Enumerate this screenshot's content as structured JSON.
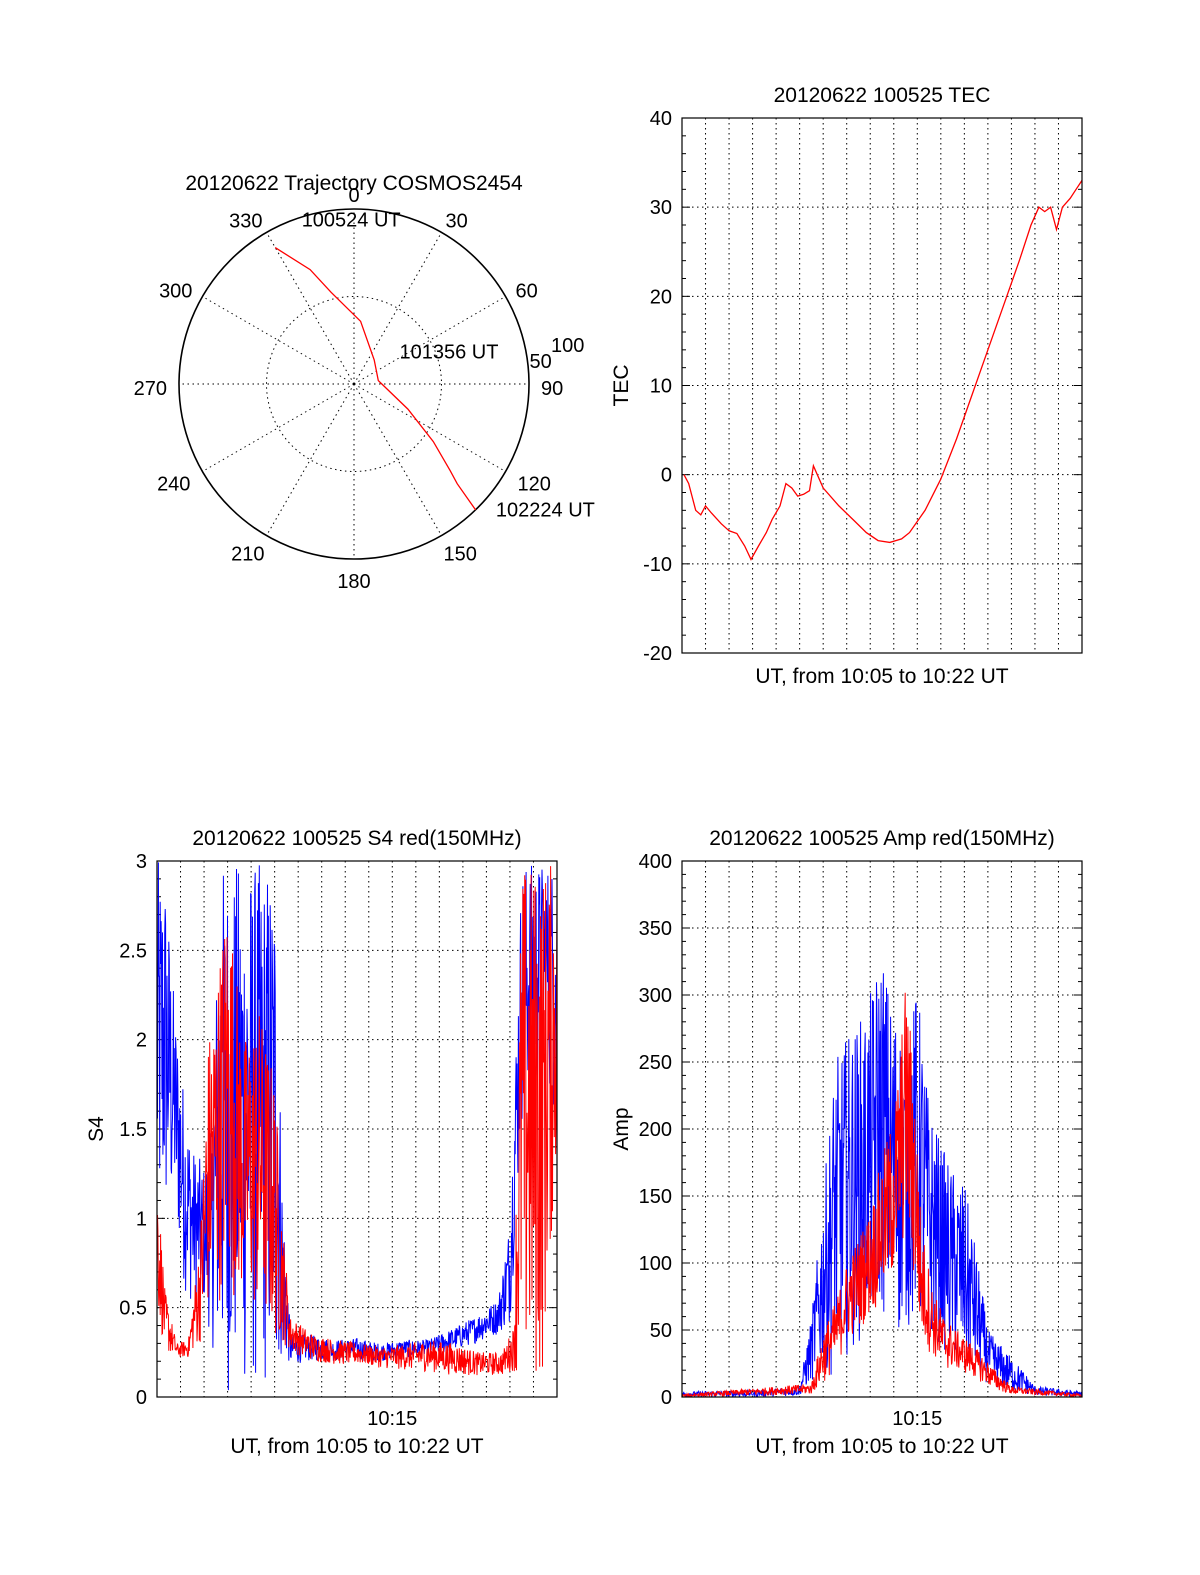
{
  "colors": {
    "red": "#ff0000",
    "blue": "#0000ff",
    "axis": "#000000"
  },
  "chart_data": [
    {
      "id": "trajectory",
      "type": "polar",
      "title": "20120622 Trajectory COSMOS2454",
      "angle_labels": [
        "0",
        "30",
        "60",
        "90",
        "120",
        "150",
        "180",
        "210",
        "240",
        "270",
        "300",
        "330"
      ],
      "radial_labels": [
        "50",
        "100"
      ],
      "rmax": 100,
      "series": [
        {
          "color": "red",
          "points": [
            {
              "az": 330,
              "el": 90
            },
            {
              "az": 339,
              "el": 70
            },
            {
              "az": 346,
              "el": 54
            },
            {
              "az": 6,
              "el": 36
            },
            {
              "az": 40,
              "el": 18
            },
            {
              "az": 82,
              "el": 14
            },
            {
              "az": 115,
              "el": 34
            },
            {
              "az": 126,
              "el": 56
            },
            {
              "az": 132,
              "el": 74
            },
            {
              "az": 134,
              "el": 82
            },
            {
              "az": 136,
              "el": 100
            }
          ]
        }
      ],
      "annotations": [
        {
          "text": "100524 UT",
          "az": 344,
          "el": 96
        },
        {
          "text": "101356 UT",
          "az": 60,
          "el": 34
        },
        {
          "text": "102224 UT",
          "az": 131,
          "el": 112
        }
      ]
    },
    {
      "id": "tec",
      "type": "line",
      "title": "20120622 100525 TEC",
      "xlabel": "UT, from 10:05 to 10:22 UT",
      "ylabel": "TEC",
      "xlim": [
        "10:05",
        "10:22"
      ],
      "ylim": [
        -20,
        40
      ],
      "yticks": [
        -20,
        -10,
        0,
        10,
        20,
        30,
        40
      ],
      "xtick_labels": [],
      "series": [
        {
          "color": "red",
          "points": [
            [
              "10:05:05",
              0
            ],
            [
              "10:05:17",
              -1
            ],
            [
              "10:05:35",
              -4
            ],
            [
              "10:05:48",
              -4.5
            ],
            [
              "10:06:00",
              -3.5
            ],
            [
              "10:06:15",
              -4.3
            ],
            [
              "10:06:40",
              -5.5
            ],
            [
              "10:07:00",
              -6.3
            ],
            [
              "10:07:20",
              -6.6
            ],
            [
              "10:07:40",
              -8
            ],
            [
              "10:07:56",
              -9.5
            ],
            [
              "10:08:15",
              -8
            ],
            [
              "10:08:35",
              -6.5
            ],
            [
              "10:08:50",
              -5
            ],
            [
              "10:09:10",
              -3.5
            ],
            [
              "10:09:25",
              -1
            ],
            [
              "10:09:40",
              -1.5
            ],
            [
              "10:09:55",
              -2.4
            ],
            [
              "10:10:10",
              -2.2
            ],
            [
              "10:10:25",
              -1.8
            ],
            [
              "10:10:35",
              1
            ],
            [
              "10:11:00",
              -1.5
            ],
            [
              "10:11:40",
              -3.5
            ],
            [
              "10:12:20",
              -5.2
            ],
            [
              "10:12:50",
              -6.5
            ],
            [
              "10:13:20",
              -7.4
            ],
            [
              "10:13:50",
              -7.6
            ],
            [
              "10:14:20",
              -7.2
            ],
            [
              "10:14:40",
              -6.5
            ],
            [
              "10:15:20",
              -4
            ],
            [
              "10:16:00",
              -0.5
            ],
            [
              "10:16:40",
              4
            ],
            [
              "10:17:20",
              9
            ],
            [
              "10:18:00",
              14
            ],
            [
              "10:18:40",
              19
            ],
            [
              "10:19:20",
              24
            ],
            [
              "10:19:50",
              28
            ],
            [
              "10:20:10",
              30
            ],
            [
              "10:20:25",
              29.5
            ],
            [
              "10:20:40",
              30
            ],
            [
              "10:20:55",
              27.5
            ],
            [
              "10:21:10",
              30
            ],
            [
              "10:21:30",
              31
            ],
            [
              "10:21:45",
              32
            ],
            [
              "10:22:00",
              33
            ]
          ]
        }
      ]
    },
    {
      "id": "s4",
      "type": "line",
      "title": "20120622 100525 S4 red(150MHz)",
      "xlabel": "UT, from 10:05 to 10:22 UT",
      "ylabel": "S4",
      "xlim": [
        "10:05",
        "10:22"
      ],
      "ylim": [
        0,
        3
      ],
      "yticks": [
        0,
        0.5,
        1,
        1.5,
        2,
        2.5,
        3
      ],
      "ytick_labels": [
        "0",
        "0.5",
        "1",
        "1.5",
        "2",
        "2.5",
        "3"
      ],
      "xtick_labels": [
        {
          "time": "10:15",
          "label": "10:15"
        }
      ],
      "series": [
        {
          "color": "blue",
          "envelope": [
            [
              "10:05:00",
              0.8,
              3.0
            ],
            [
              "10:05:20",
              0.9,
              3.0
            ],
            [
              "10:05:45",
              1.0,
              2.2
            ],
            [
              "10:06:10",
              0.6,
              1.7
            ],
            [
              "10:06:30",
              0.5,
              1.4
            ],
            [
              "10:07:00",
              0.5,
              1.3
            ],
            [
              "10:07:20",
              0.3,
              1.5
            ],
            [
              "10:07:40",
              0.0,
              3.0
            ],
            [
              "10:08:30",
              0.0,
              3.0
            ],
            [
              "10:09:20",
              0.0,
              3.0
            ],
            [
              "10:10:00",
              0.0,
              3.0
            ],
            [
              "10:10:20",
              0.2,
              1.2
            ],
            [
              "10:10:40",
              0.18,
              0.35
            ],
            [
              "10:11:30",
              0.2,
              0.35
            ],
            [
              "10:12:30",
              0.2,
              0.32
            ],
            [
              "10:13:30",
              0.2,
              0.33
            ],
            [
              "10:14:30",
              0.2,
              0.3
            ],
            [
              "10:15:30",
              0.22,
              0.32
            ],
            [
              "10:16:30",
              0.22,
              0.32
            ],
            [
              "10:17:30",
              0.25,
              0.38
            ],
            [
              "10:18:30",
              0.3,
              0.45
            ],
            [
              "10:19:30",
              0.35,
              0.55
            ],
            [
              "10:20:00",
              0.4,
              1.0
            ],
            [
              "10:20:30",
              1.5,
              3.0
            ],
            [
              "10:21:30",
              1.8,
              3.0
            ],
            [
              "10:22:00",
              1.5,
              3.0
            ]
          ]
        },
        {
          "color": "red",
          "envelope": [
            [
              "10:05:00",
              0.5,
              1.3
            ],
            [
              "10:05:20",
              0.25,
              0.6
            ],
            [
              "10:05:50",
              0.22,
              0.3
            ],
            [
              "10:06:20",
              0.22,
              0.32
            ],
            [
              "10:06:50",
              0.3,
              0.9
            ],
            [
              "10:07:10",
              0.4,
              2.0
            ],
            [
              "10:07:30",
              0.5,
              2.3
            ],
            [
              "10:08:00",
              0.6,
              2.9
            ],
            [
              "10:08:40",
              0.5,
              2.0
            ],
            [
              "10:09:20",
              0.4,
              2.2
            ],
            [
              "10:10:00",
              0.3,
              1.8
            ],
            [
              "10:10:20",
              0.3,
              1.0
            ],
            [
              "10:10:40",
              0.25,
              0.45
            ],
            [
              "10:11:40",
              0.2,
              0.35
            ],
            [
              "10:12:40",
              0.18,
              0.32
            ],
            [
              "10:13:40",
              0.18,
              0.3
            ],
            [
              "10:14:40",
              0.16,
              0.28
            ],
            [
              "10:15:40",
              0.15,
              0.3
            ],
            [
              "10:16:40",
              0.14,
              0.32
            ],
            [
              "10:17:40",
              0.12,
              0.3
            ],
            [
              "10:18:40",
              0.12,
              0.25
            ],
            [
              "10:19:40",
              0.12,
              0.25
            ],
            [
              "10:20:10",
              0.15,
              0.4
            ],
            [
              "10:20:30",
              0.0,
              3.0
            ],
            [
              "10:21:20",
              0.0,
              3.0
            ],
            [
              "10:22:00",
              1.3,
              3.0
            ]
          ]
        }
      ]
    },
    {
      "id": "amp",
      "type": "line",
      "title": "20120622 100525 Amp red(150MHz)",
      "xlabel": "UT, from 10:05 to 10:22 UT",
      "ylabel": "Amp",
      "xlim": [
        "10:05",
        "10:22"
      ],
      "ylim": [
        0,
        400
      ],
      "yticks": [
        0,
        50,
        100,
        150,
        200,
        250,
        300,
        350,
        400
      ],
      "xtick_labels": [
        {
          "time": "10:15",
          "label": "10:15"
        }
      ],
      "series": [
        {
          "color": "blue",
          "envelope": [
            [
              "10:05:00",
              0,
              4
            ],
            [
              "10:08:00",
              0,
              5
            ],
            [
              "10:10:00",
              1,
              8
            ],
            [
              "10:10:30",
              10,
              60
            ],
            [
              "10:11:00",
              20,
              150
            ],
            [
              "10:11:30",
              15,
              250
            ],
            [
              "10:12:00",
              30,
              270
            ],
            [
              "10:12:30",
              40,
              280
            ],
            [
              "10:13:00",
              50,
              300
            ],
            [
              "10:13:30",
              60,
              340
            ],
            [
              "10:13:50",
              50,
              300
            ],
            [
              "10:14:10",
              40,
              290
            ],
            [
              "10:14:30",
              50,
              260
            ],
            [
              "10:15:00",
              50,
              310
            ],
            [
              "10:15:30",
              40,
              220
            ],
            [
              "10:16:00",
              40,
              190
            ],
            [
              "10:16:30",
              20,
              170
            ],
            [
              "10:17:00",
              20,
              160
            ],
            [
              "10:17:30",
              15,
              110
            ],
            [
              "10:18:00",
              10,
              50
            ],
            [
              "10:18:30",
              5,
              40
            ],
            [
              "10:19:00",
              3,
              30
            ],
            [
              "10:19:30",
              2,
              20
            ],
            [
              "10:20:00",
              1,
              8
            ],
            [
              "10:22:00",
              0,
              4
            ]
          ]
        },
        {
          "color": "red",
          "envelope": [
            [
              "10:05:00",
              0,
              2
            ],
            [
              "10:10:30",
              2,
              10
            ],
            [
              "10:11:00",
              10,
              50
            ],
            [
              "10:11:30",
              20,
              70
            ],
            [
              "10:12:00",
              40,
              100
            ],
            [
              "10:12:30",
              50,
              120
            ],
            [
              "10:13:00",
              60,
              140
            ],
            [
              "10:13:30",
              70,
              180
            ],
            [
              "10:13:50",
              80,
              200
            ],
            [
              "10:14:10",
              90,
              240
            ],
            [
              "10:14:30",
              120,
              310
            ],
            [
              "10:14:50",
              80,
              260
            ],
            [
              "10:15:10",
              40,
              130
            ],
            [
              "10:15:40",
              30,
              80
            ],
            [
              "10:16:10",
              20,
              60
            ],
            [
              "10:16:40",
              20,
              50
            ],
            [
              "10:17:20",
              15,
              40
            ],
            [
              "10:17:50",
              10,
              30
            ],
            [
              "10:18:20",
              5,
              20
            ],
            [
              "10:19:00",
              2,
              8
            ],
            [
              "10:22:00",
              0,
              2
            ]
          ]
        }
      ]
    }
  ]
}
